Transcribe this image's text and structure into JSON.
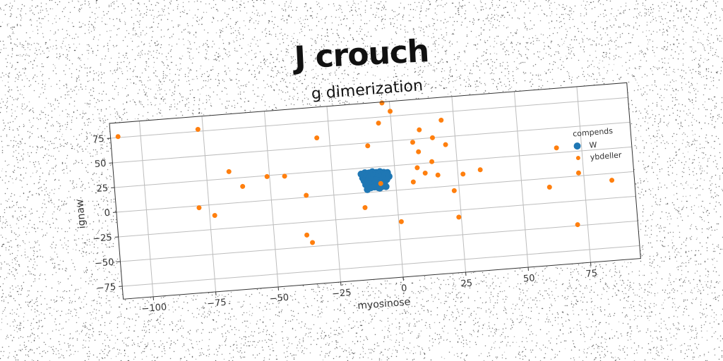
{
  "suptitle": "J crouch",
  "chart_data": {
    "type": "scatter",
    "title": "g dimerization",
    "xlabel": "myosinose",
    "ylabel": "ignaw",
    "xlim": [
      -112,
      95
    ],
    "ylim": [
      -88,
      90
    ],
    "xticks": [
      -100,
      -75,
      -50,
      -25,
      0,
      25,
      50,
      75
    ],
    "yticks": [
      -75,
      -50,
      -25,
      0,
      25,
      50,
      75
    ],
    "grid": true,
    "legend": {
      "title": "compends",
      "placement": "right",
      "entries": [
        "W",
        "ybdeller"
      ]
    },
    "series": [
      {
        "name": "W",
        "color": "#1f77b4",
        "marker_size": 9,
        "x": [
          -13.5,
          -12.0,
          -10.5,
          -9.0,
          -7.5,
          -6.0,
          -4.5,
          -3.0,
          -13.0,
          -11.5,
          -10.0,
          -8.5,
          -7.0,
          -5.5,
          -4.0,
          -2.5,
          -12.5,
          -11.0,
          -9.5,
          -8.0,
          -6.5,
          -5.0,
          -3.5,
          -12.0,
          -10.5,
          -9.0,
          -7.5,
          -6.0,
          -4.5,
          -10.0,
          -8.5,
          -7.0,
          -5.5,
          -4.0,
          -11.5,
          -6.5
        ],
        "y": [
          19.0,
          20.0,
          19.5,
          20.5,
          19.5,
          20.0,
          19.0,
          18.5,
          15.0,
          16.0,
          15.5,
          16.5,
          15.0,
          15.5,
          16.0,
          14.5,
          12.0,
          11.5,
          12.5,
          12.0,
          11.0,
          12.5,
          11.5,
          8.0,
          8.5,
          7.5,
          8.5,
          9.0,
          8.0,
          4.5,
          5.0,
          4.0,
          5.0,
          4.5,
          3.0,
          3.5
        ]
      },
      {
        "name": "ybdeller",
        "color": "#ff7f0e",
        "marker_size": 6,
        "x": [
          -109,
          -77,
          -79,
          -73,
          -66,
          -61,
          -51,
          -44,
          -30,
          -36,
          -37,
          -35,
          -13,
          -10,
          -6,
          -5,
          -3,
          0,
          1,
          7,
          8,
          9,
          10,
          11,
          12,
          15,
          16,
          20,
          21,
          23,
          24,
          17,
          27,
          34,
          45,
          63,
          65,
          73,
          86,
          61,
          71
        ],
        "y": [
          76,
          77,
          -2,
          -11,
          32,
          16,
          24,
          23,
          59,
          2,
          -38,
          -46,
          -15,
          47,
          8,
          69,
          89,
          80,
          -32,
          7,
          47,
          21,
          37,
          59,
          15,
          26,
          50,
          67,
          42,
          -5,
          -32,
          12,
          11,
          14,
          100,
          95,
          30,
          3,
          -7,
          -9,
          -49
        ]
      }
    ]
  }
}
